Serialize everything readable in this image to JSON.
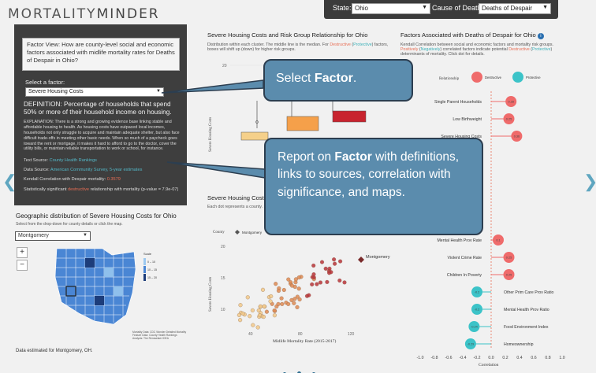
{
  "app": {
    "logo_a": "MORTALITY",
    "logo_b": "MINDER"
  },
  "header": {
    "state_label": "State:",
    "state_value": "Ohio",
    "cause_label": "Cause of Death:",
    "cause_value": "Deaths of Despair"
  },
  "factor_panel": {
    "question": "Factor View: How are county-level social and economic factors associated with midlife mortality rates for Deaths of Despair in Ohio?",
    "select_label": "Select a factor:",
    "selected_factor": "Severe Housing Costs",
    "definition": "DEFINITION: Percentage of households that spend 50% or more of their household income on housing.",
    "explanation": "EXPLANATION: There is a strong and growing evidence base linking stable and affordable housing to health. As housing costs have outpaced local incomes, households not only struggle to acquire and maintain adequate shelter, but also face difficult trade-offs in meeting other basic needs. When so much of a paycheck goes toward the rent or mortgage, it makes it hard to afford to go to the doctor, cover the utility bills, or maintain reliable transportation to work or school, for instance.",
    "text_source_label": "Text Source: ",
    "text_source_link": "County Health Rankings",
    "data_source_label": "Data Source: ",
    "data_source_link": "American Community Survey, 5-year estimates",
    "corr_label": "Kendall Correlation with Despair mortality: ",
    "corr_value": "0.3579",
    "sig_a": "Statistically significant ",
    "sig_b": "destructive",
    "sig_c": " relationship with mortality (p-value = 7.9e-07)"
  },
  "geo": {
    "title": "Geographic distribution of Severe Housing Costs for Ohio",
    "hint": "Select from the drop-down for county details or click the map.",
    "county": "Montgomery",
    "zoom_in": "+",
    "zoom_out": "−",
    "legend_title": "Scale",
    "legend": [
      "0 – 10",
      "10 – 15",
      "15 – 20"
    ],
    "credits_1": "Mortality Data: CDC Wonder Detailed Mortality",
    "credits_2": "Feature Data: County Health Rankings",
    "credits_3": "Analysis: The Rensselaer IDEA",
    "footer": "Data estimated for Montgomery, OH."
  },
  "boxplot": {
    "title": "Severe Housing Costs and Risk Group Relationship for Ohio",
    "sub_a": "Distribution within each cluster. The middle line is the median. For ",
    "sub_dest": "Destructive",
    "sub_b": " (",
    "sub_prot": "Protective",
    "sub_c": ") factors, boxes will shift up (down) for higher risk groups.",
    "ylabel": "Severe Housing Costs",
    "tick_20": "20"
  },
  "scatter": {
    "title": "Severe Housing Costs vs Mortality for Ohio",
    "sub": "Each dot represents a county. Selected county highlighted. Use the drop-down to see map location.",
    "legend_county": "County",
    "legend_name": "Montgomery",
    "annotation": "Montgomery",
    "ylabel": "Severe Housing Costs",
    "xlabel": "Midlife Mortality Rate (2015-2017)",
    "yticks": [
      "20",
      "15",
      "10"
    ],
    "xticks": [
      "40",
      "80",
      "120"
    ]
  },
  "factors": {
    "title": "Factors Associated with Deaths of Despair for Ohio",
    "sub_a": "Kendall Correlation between social and economic factors and mortality risk groups. ",
    "sub_pos": "Positively",
    "sub_b": " (",
    "sub_neg": "Negatively",
    "sub_c": ") correlated factors indicate potential ",
    "sub_dest": "Destructive",
    "sub_d": " (",
    "sub_prot": "Protective",
    "sub_e": ") determinants of mortality. Click dot for details.",
    "legend_label": "Relationship",
    "legend_dest": "Destructive",
    "legend_prot": "Protective",
    "xlabel": "Correlation",
    "xticks": [
      "-1.0",
      "-0.8",
      "-0.6",
      "-0.4",
      "-0.2",
      "0.0",
      "0.2",
      "0.4",
      "0.6",
      "0.8",
      "1.0"
    ]
  },
  "chart_data": {
    "type": "scatter",
    "title": "Factors Associated with Deaths of Despair for Ohio",
    "xlabel": "Correlation",
    "xlim": [
      -1.0,
      1.0
    ],
    "categories": [
      "Single Parent Households",
      "Low Birthweight",
      "Severe Housing Costs",
      "Mental Health Prov Rate",
      "Violent Crime Rate",
      "Children In Poverty",
      "Other Prim Care Prov Ratio",
      "Mental Health Prov Ratio",
      "Food Environment Index",
      "Homeownership"
    ],
    "values": [
      0.28,
      0.25,
      0.36,
      0.1,
      0.25,
      0.25,
      -0.2,
      -0.2,
      -0.24,
      -0.29
    ],
    "relationship": [
      "Destructive",
      "Destructive",
      "Destructive",
      "Destructive",
      "Destructive",
      "Destructive",
      "Protective",
      "Protective",
      "Protective",
      "Protective"
    ],
    "value_labels": [
      "0.28",
      "0.25",
      "0.36",
      "0.1",
      "0.25",
      "0.25",
      "-0.2",
      "-0.2",
      "-0.24",
      "-0.29"
    ]
  },
  "callouts": {
    "c1_a": "Select ",
    "c1_b": "Factor",
    "c1_c": ".",
    "c2_a": "Report on ",
    "c2_b": "Factor",
    "c2_c": " with definitions, links to sources, correlation with significance, and maps."
  },
  "colors": {
    "destructive": "#ef6b6b",
    "protective": "#3cc3c8",
    "panel": "#3e3e3e",
    "callout": "#5b8cad"
  }
}
